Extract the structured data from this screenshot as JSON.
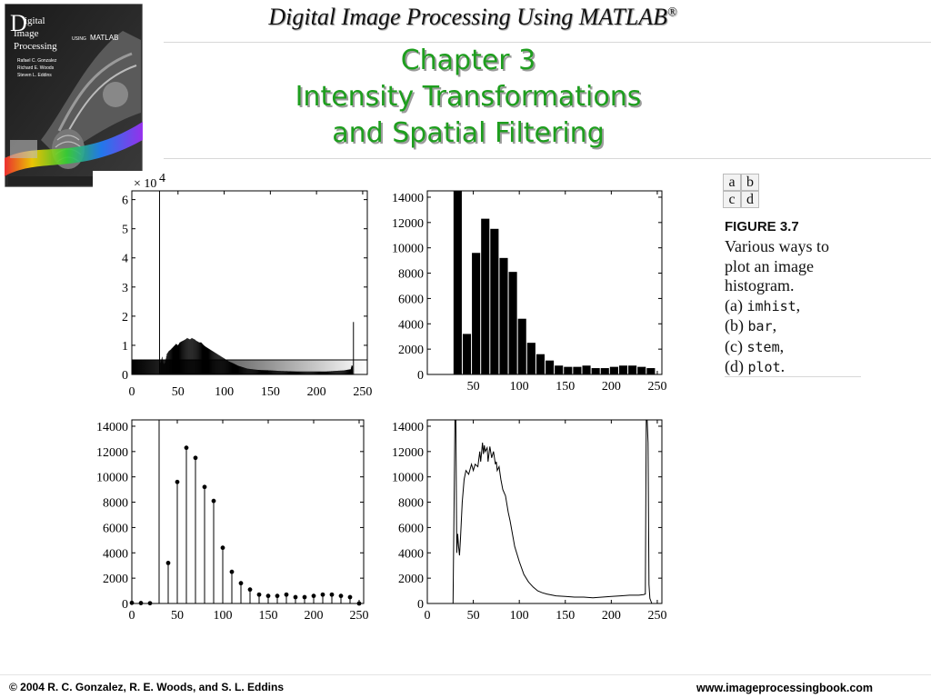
{
  "header": {
    "title": "Digital Image Processing Using MATLAB",
    "title_mark": "®"
  },
  "chapter": {
    "line1": "Chapter 3",
    "line2": "Intensity Transformations",
    "line3": "and Spatial Filtering"
  },
  "book_cover": {
    "brand_letter": "D",
    "title_line1": "igital",
    "title_line2": "Image",
    "title_line3": "Processing",
    "using": "USING",
    "matlab": "MATLAB",
    "author1": "Rafael C. Gonzalez",
    "author2": "Richard E. Woods",
    "author3": "Steven L. Eddins"
  },
  "figure": {
    "letters": [
      "a",
      "b",
      "c",
      "d"
    ],
    "label": "FIGURE 3.7",
    "caption": {
      "line1": "Various ways to",
      "line2": "plot an image",
      "line3": "histogram.",
      "a_prefix": "(a) ",
      "a_code": "imhist",
      "a_suffix": ",",
      "b_prefix": "(b) ",
      "b_code": "bar",
      "b_suffix": ",",
      "c_prefix": "(c) ",
      "c_code": "stem",
      "c_suffix": ",",
      "d_prefix": "(d) ",
      "d_code": "plot",
      "d_suffix": "."
    }
  },
  "footer": {
    "copyright": "© 2004 R. C. Gonzalez, R. E. Woods, and S. L. Eddins",
    "website": "www.imageprocessingbook.com"
  },
  "colors": {
    "chapter_text": "#1e9e1e",
    "plot_ink": "#000000"
  },
  "chart_data": [
    {
      "id": "a",
      "type": "bar",
      "ylim": [
        0,
        6.3
      ],
      "xlim": [
        0,
        255
      ],
      "yticks": [
        0,
        1,
        2,
        3,
        4,
        5,
        6
      ],
      "xticks": [
        0,
        50,
        100,
        150,
        200,
        250
      ],
      "y_multiplier": "× 10",
      "y_multiplier_exp": "4",
      "spikes": [
        {
          "x": 30,
          "y": 6.3
        },
        {
          "x": 240,
          "y": 1.8
        }
      ],
      "envelope_x": [
        31,
        32,
        33,
        34,
        35,
        36,
        37,
        38,
        40,
        42,
        45,
        48,
        50,
        52,
        55,
        58,
        60,
        63,
        65,
        68,
        70,
        73,
        75,
        78,
        80,
        85,
        90,
        95,
        100,
        105,
        110,
        115,
        120,
        125,
        130,
        135,
        140,
        150,
        160,
        170,
        180,
        190,
        200,
        210,
        220,
        230,
        237,
        238,
        239
      ],
      "envelope_y": [
        0.4,
        0.5,
        0.6,
        0.4,
        0.35,
        0.4,
        0.55,
        0.7,
        0.8,
        0.85,
        0.95,
        1.05,
        1.0,
        1.1,
        1.15,
        1.2,
        1.25,
        1.2,
        1.25,
        1.2,
        1.15,
        1.1,
        1.1,
        1.0,
        0.95,
        0.85,
        0.75,
        0.65,
        0.55,
        0.45,
        0.38,
        0.3,
        0.25,
        0.2,
        0.18,
        0.16,
        0.15,
        0.14,
        0.12,
        0.11,
        0.1,
        0.1,
        0.1,
        0.1,
        0.12,
        0.14,
        0.18,
        0.3,
        0.3
      ]
    },
    {
      "id": "b",
      "type": "bar",
      "ylim": [
        0,
        14500
      ],
      "xlim": [
        0,
        255
      ],
      "yticks": [
        0,
        2000,
        4000,
        6000,
        8000,
        10000,
        12000,
        14000
      ],
      "xticks": [
        50,
        100,
        150,
        200,
        250
      ],
      "bar_width": 9,
      "x": [
        33,
        43,
        53,
        63,
        73,
        83,
        93,
        103,
        113,
        123,
        133,
        143,
        153,
        163,
        173,
        183,
        193,
        203,
        213,
        223,
        233,
        243
      ],
      "values": [
        14500,
        3200,
        9600,
        12300,
        11500,
        9200,
        8100,
        4400,
        2500,
        1600,
        1100,
        700,
        600,
        600,
        700,
        500,
        500,
        600,
        700,
        700,
        600,
        500
      ]
    },
    {
      "id": "c",
      "type": "stem",
      "ylim": [
        0,
        14500
      ],
      "xlim": [
        0,
        255
      ],
      "yticks": [
        0,
        2000,
        4000,
        6000,
        8000,
        10000,
        12000,
        14000
      ],
      "xticks": [
        0,
        50,
        100,
        150,
        200,
        250
      ],
      "x": [
        0,
        10,
        20,
        30,
        40,
        50,
        60,
        70,
        80,
        90,
        100,
        110,
        120,
        130,
        140,
        150,
        160,
        170,
        180,
        190,
        200,
        210,
        220,
        230,
        240,
        250
      ],
      "values": [
        50,
        30,
        20,
        14500,
        3200,
        9600,
        12300,
        11500,
        9200,
        8100,
        4400,
        2500,
        1600,
        1100,
        700,
        600,
        600,
        700,
        500,
        500,
        600,
        700,
        700,
        600,
        500,
        0
      ]
    },
    {
      "id": "d",
      "type": "line",
      "ylim": [
        0,
        14500
      ],
      "xlim": [
        0,
        255
      ],
      "yticks": [
        0,
        2000,
        4000,
        6000,
        8000,
        10000,
        12000,
        14000
      ],
      "xticks": [
        0,
        50,
        100,
        150,
        200,
        250
      ],
      "x": [
        28,
        30,
        31,
        32,
        33,
        34,
        35,
        36,
        38,
        40,
        42,
        45,
        48,
        50,
        52,
        55,
        57,
        58,
        60,
        61,
        62,
        63,
        65,
        66,
        68,
        70,
        72,
        74,
        75,
        76,
        78,
        80,
        82,
        85,
        88,
        90,
        95,
        100,
        105,
        110,
        115,
        120,
        125,
        130,
        140,
        150,
        160,
        170,
        180,
        190,
        200,
        210,
        220,
        230,
        235,
        237,
        238,
        239,
        240,
        241,
        242,
        244
      ],
      "values": [
        0,
        14500,
        14500,
        4000,
        5500,
        4500,
        3800,
        5000,
        8000,
        9800,
        10500,
        10200,
        11000,
        10500,
        11000,
        10800,
        12000,
        11200,
        12700,
        11800,
        12500,
        12000,
        12300,
        11200,
        12400,
        11500,
        12000,
        11000,
        11200,
        10500,
        10800,
        9800,
        9000,
        8500,
        7200,
        6500,
        4500,
        3300,
        2300,
        1700,
        1300,
        1000,
        850,
        750,
        600,
        550,
        500,
        500,
        450,
        500,
        550,
        600,
        650,
        650,
        700,
        750,
        14500,
        14500,
        12700,
        1500,
        400,
        0
      ]
    }
  ]
}
